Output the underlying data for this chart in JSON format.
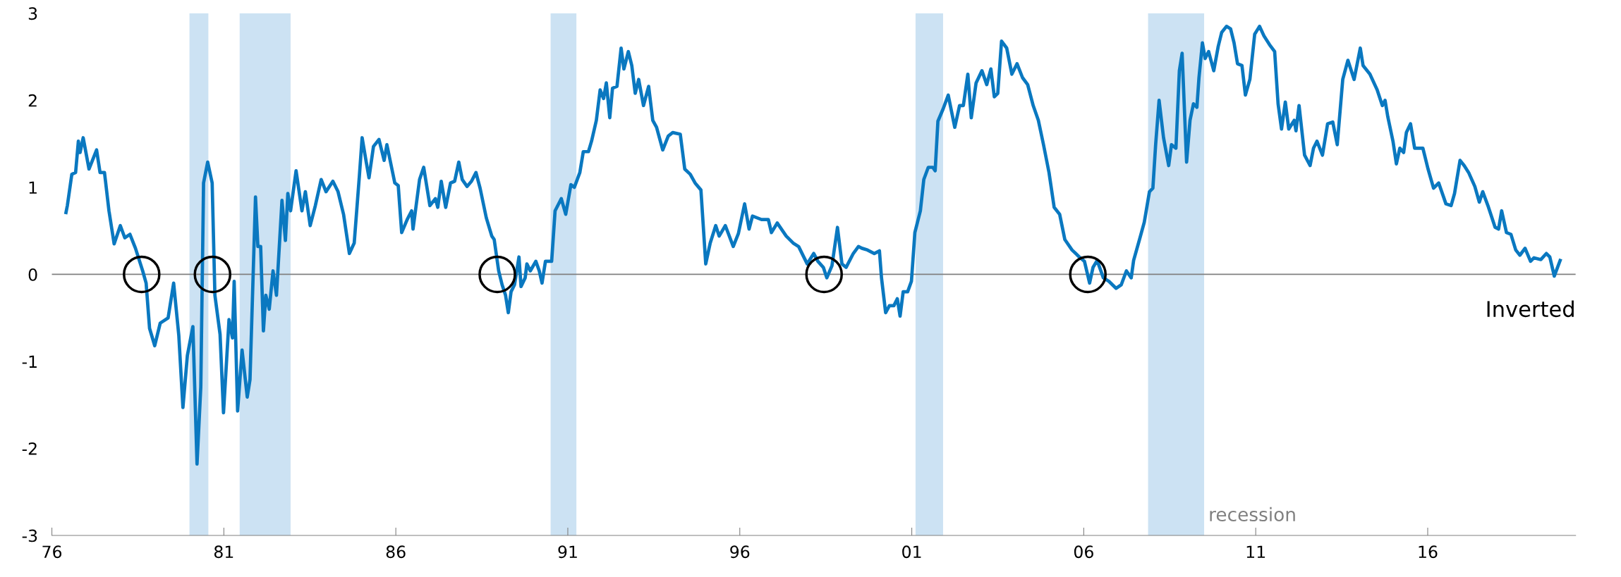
{
  "chart_data": {
    "type": "line",
    "xlim": [
      1976,
      2020.3
    ],
    "ylim": [
      -3,
      3
    ],
    "xticks": [
      {
        "value": 1976,
        "label": "76"
      },
      {
        "value": 1981,
        "label": "81"
      },
      {
        "value": 1986,
        "label": "86"
      },
      {
        "value": 1991,
        "label": "91"
      },
      {
        "value": 1996,
        "label": "96"
      },
      {
        "value": 2001,
        "label": "01"
      },
      {
        "value": 2006,
        "label": "06"
      },
      {
        "value": 2011,
        "label": "11"
      },
      {
        "value": 2016,
        "label": "16"
      }
    ],
    "yticks": [
      -3,
      -2,
      -1,
      0,
      1,
      2,
      3
    ],
    "grid": false,
    "legend": false,
    "ref_lines": [
      {
        "axis": "y",
        "value": 0,
        "color": "#808080"
      }
    ],
    "bands": [
      {
        "axis": "x",
        "from": 1980.0,
        "to": 1980.55,
        "color": "#cce2f3"
      },
      {
        "axis": "x",
        "from": 1981.46,
        "to": 1982.94,
        "color": "#cce2f3"
      },
      {
        "axis": "x",
        "from": 1990.5,
        "to": 1991.25,
        "color": "#cce2f3"
      },
      {
        "axis": "x",
        "from": 2001.11,
        "to": 2001.91,
        "color": "#cce2f3"
      },
      {
        "axis": "x",
        "from": 2007.87,
        "to": 2009.5,
        "color": "#cce2f3"
      }
    ],
    "annotations": [
      "recession",
      "Inverted"
    ],
    "series": [
      {
        "color": "#0a78c0",
        "marker": "none",
        "line_style": "solid",
        "x": [
          1976.41,
          1976.45,
          1976.58,
          1976.69,
          1976.77,
          1976.82,
          1976.91,
          1977.08,
          1977.3,
          1977.4,
          1977.53,
          1977.66,
          1977.81,
          1977.99,
          1978.12,
          1978.27,
          1978.43,
          1978.64,
          1978.74,
          1978.84,
          1978.99,
          1979.15,
          1979.38,
          1979.54,
          1979.69,
          1979.81,
          1979.94,
          1980.1,
          1980.22,
          1980.33,
          1980.41,
          1980.53,
          1980.66,
          1980.74,
          1980.89,
          1980.99,
          1981.15,
          1981.25,
          1981.3,
          1981.4,
          1981.53,
          1981.68,
          1981.76,
          1981.92,
          1981.99,
          1982.07,
          1982.15,
          1982.22,
          1982.32,
          1982.43,
          1982.53,
          1982.69,
          1982.79,
          1982.86,
          1982.94,
          1983.1,
          1983.27,
          1983.37,
          1983.51,
          1983.66,
          1983.83,
          1983.97,
          1984.17,
          1984.32,
          1984.48,
          1984.65,
          1984.79,
          1984.94,
          1985.02,
          1985.14,
          1985.22,
          1985.35,
          1985.51,
          1985.66,
          1985.74,
          1985.97,
          1986.07,
          1986.17,
          1986.33,
          1986.46,
          1986.5,
          1986.69,
          1986.81,
          1986.99,
          1987.15,
          1987.22,
          1987.32,
          1987.45,
          1987.59,
          1987.71,
          1987.83,
          1987.93,
          1988.07,
          1988.2,
          1988.33,
          1988.45,
          1988.63,
          1988.79,
          1988.86,
          1988.99,
          1989.09,
          1989.19,
          1989.27,
          1989.35,
          1989.45,
          1989.58,
          1989.64,
          1989.76,
          1989.81,
          1989.91,
          1990.07,
          1990.17,
          1990.25,
          1990.35,
          1990.53,
          1990.63,
          1990.81,
          1990.94,
          1991.09,
          1991.19,
          1991.35,
          1991.45,
          1991.6,
          1991.69,
          1991.83,
          1991.94,
          1992.04,
          1992.12,
          1992.22,
          1992.3,
          1992.43,
          1992.55,
          1992.63,
          1992.76,
          1992.86,
          1992.96,
          1993.06,
          1993.2,
          1993.35,
          1993.47,
          1993.58,
          1993.76,
          1993.92,
          1994.05,
          1994.27,
          1994.4,
          1994.56,
          1994.7,
          1994.87,
          1995.01,
          1995.14,
          1995.3,
          1995.4,
          1995.58,
          1995.81,
          1995.96,
          1996.14,
          1996.27,
          1996.37,
          1996.63,
          1996.83,
          1996.92,
          1997.09,
          1997.35,
          1997.55,
          1997.71,
          1997.96,
          1998.15,
          1998.27,
          1998.43,
          1998.53,
          1998.68,
          1998.84,
          1998.97,
          1999.09,
          1999.3,
          1999.45,
          1999.55,
          1999.71,
          1999.91,
          2000.06,
          2000.12,
          2000.24,
          2000.35,
          2000.48,
          2000.58,
          2000.66,
          2000.75,
          2000.88,
          2000.99,
          2001.09,
          2001.25,
          2001.35,
          2001.48,
          2001.61,
          2001.68,
          2001.76,
          2001.91,
          2002.06,
          2002.25,
          2002.39,
          2002.5,
          2002.63,
          2002.73,
          2002.87,
          2003.04,
          2003.18,
          2003.3,
          2003.4,
          2003.5,
          2003.61,
          2003.76,
          2003.91,
          2004.06,
          2004.22,
          2004.37,
          2004.53,
          2004.68,
          2004.83,
          2004.99,
          2005.14,
          2005.3,
          2005.45,
          2005.66,
          2005.87,
          2006.02,
          2006.17,
          2006.27,
          2006.39,
          2006.57,
          2006.73,
          2006.94,
          2007.09,
          2007.24,
          2007.38,
          2007.45,
          2007.62,
          2007.76,
          2007.91,
          2008.01,
          2008.09,
          2008.19,
          2008.32,
          2008.47,
          2008.55,
          2008.68,
          2008.78,
          2008.86,
          2008.99,
          2009.09,
          2009.19,
          2009.29,
          2009.35,
          2009.45,
          2009.53,
          2009.63,
          2009.78,
          2009.91,
          2010.01,
          2010.15,
          2010.27,
          2010.37,
          2010.47,
          2010.6,
          2010.7,
          2010.83,
          2010.97,
          2011.11,
          2011.24,
          2011.4,
          2011.55,
          2011.65,
          2011.75,
          2011.86,
          2011.96,
          2012.12,
          2012.17,
          2012.26,
          2012.42,
          2012.58,
          2012.68,
          2012.78,
          2012.94,
          2013.09,
          2013.24,
          2013.37,
          2013.53,
          2013.68,
          2013.86,
          2014.04,
          2014.12,
          2014.32,
          2014.53,
          2014.68,
          2014.76,
          2014.84,
          2014.99,
          2015.09,
          2015.19,
          2015.3,
          2015.38,
          2015.5,
          2015.62,
          2015.86,
          2016.01,
          2016.17,
          2016.32,
          2016.53,
          2016.68,
          2016.78,
          2016.94,
          2017.06,
          2017.19,
          2017.37,
          2017.5,
          2017.6,
          2017.75,
          2017.96,
          2018.06,
          2018.15,
          2018.29,
          2018.42,
          2018.56,
          2018.68,
          2018.83,
          2018.99,
          2019.09,
          2019.29,
          2019.45,
          2019.55,
          2019.68,
          2019.85
        ],
        "values": [
          0.71,
          0.79,
          1.15,
          1.17,
          1.53,
          1.4,
          1.57,
          1.21,
          1.43,
          1.17,
          1.17,
          0.73,
          0.35,
          0.56,
          0.42,
          0.46,
          0.3,
          0.04,
          -0.1,
          -0.62,
          -0.82,
          -0.56,
          -0.5,
          -0.1,
          -0.7,
          -1.53,
          -0.93,
          -0.6,
          -2.18,
          -1.29,
          1.05,
          1.29,
          1.05,
          -0.24,
          -0.69,
          -1.59,
          -0.52,
          -0.73,
          -0.08,
          -1.57,
          -0.87,
          -1.41,
          -1.21,
          0.89,
          0.32,
          0.32,
          -0.65,
          -0.24,
          -0.4,
          0.04,
          -0.24,
          0.85,
          0.39,
          0.93,
          0.73,
          1.19,
          0.73,
          0.95,
          0.56,
          0.79,
          1.09,
          0.95,
          1.07,
          0.95,
          0.69,
          0.24,
          0.36,
          1.13,
          1.57,
          1.29,
          1.11,
          1.47,
          1.55,
          1.31,
          1.49,
          1.05,
          1.02,
          0.48,
          0.63,
          0.73,
          0.52,
          1.09,
          1.23,
          0.79,
          0.87,
          0.77,
          1.07,
          0.77,
          1.05,
          1.07,
          1.29,
          1.09,
          1.01,
          1.07,
          1.17,
          0.99,
          0.65,
          0.44,
          0.4,
          0.04,
          -0.12,
          -0.24,
          -0.44,
          -0.2,
          -0.12,
          0.2,
          -0.14,
          -0.04,
          0.12,
          0.04,
          0.15,
          0.04,
          -0.1,
          0.15,
          0.15,
          0.73,
          0.87,
          0.69,
          1.03,
          1.0,
          1.17,
          1.41,
          1.41,
          1.53,
          1.77,
          2.12,
          2.02,
          2.2,
          1.8,
          2.14,
          2.16,
          2.6,
          2.36,
          2.56,
          2.4,
          2.08,
          2.24,
          1.94,
          2.16,
          1.77,
          1.69,
          1.43,
          1.59,
          1.63,
          1.61,
          1.21,
          1.15,
          1.05,
          0.97,
          0.12,
          0.36,
          0.56,
          0.44,
          0.56,
          0.32,
          0.47,
          0.81,
          0.52,
          0.67,
          0.63,
          0.63,
          0.48,
          0.59,
          0.44,
          0.36,
          0.32,
          0.12,
          0.24,
          0.15,
          0.08,
          -0.04,
          0.1,
          0.54,
          0.12,
          0.08,
          0.24,
          0.32,
          0.3,
          0.28,
          0.24,
          0.27,
          -0.04,
          -0.44,
          -0.36,
          -0.36,
          -0.28,
          -0.48,
          -0.2,
          -0.2,
          -0.08,
          0.48,
          0.73,
          1.09,
          1.23,
          1.23,
          1.19,
          1.76,
          1.9,
          2.06,
          1.69,
          1.94,
          1.94,
          2.3,
          1.8,
          2.2,
          2.34,
          2.18,
          2.36,
          2.04,
          2.08,
          2.68,
          2.6,
          2.3,
          2.42,
          2.26,
          2.18,
          1.94,
          1.77,
          1.49,
          1.17,
          0.77,
          0.69,
          0.4,
          0.28,
          0.2,
          0.15,
          -0.1,
          0.08,
          0.16,
          -0.04,
          -0.08,
          -0.16,
          -0.12,
          0.04,
          -0.04,
          0.16,
          0.4,
          0.6,
          0.95,
          0.99,
          1.49,
          2.0,
          1.57,
          1.25,
          1.49,
          1.45,
          2.34,
          2.54,
          1.29,
          1.77,
          1.96,
          1.92,
          2.26,
          2.66,
          2.48,
          2.56,
          2.34,
          2.62,
          2.78,
          2.85,
          2.82,
          2.66,
          2.42,
          2.4,
          2.06,
          2.24,
          2.76,
          2.85,
          2.74,
          2.64,
          2.56,
          1.96,
          1.67,
          1.98,
          1.67,
          1.77,
          1.65,
          1.94,
          1.37,
          1.25,
          1.45,
          1.53,
          1.37,
          1.73,
          1.75,
          1.49,
          2.24,
          2.46,
          2.24,
          2.6,
          2.4,
          2.3,
          2.12,
          1.94,
          2.0,
          1.81,
          1.53,
          1.27,
          1.45,
          1.4,
          1.63,
          1.73,
          1.45,
          1.45,
          1.21,
          0.99,
          1.05,
          0.81,
          0.79,
          0.93,
          1.31,
          1.25,
          1.17,
          1.01,
          0.83,
          0.95,
          0.79,
          0.54,
          0.52,
          0.73,
          0.48,
          0.46,
          0.28,
          0.22,
          0.3,
          0.15,
          0.19,
          0.17,
          0.24,
          0.2,
          -0.02,
          0.16
        ]
      },
      {
        "type": "scatter",
        "color": "#000000",
        "marker": "circle",
        "x": [
          1978.61,
          1980.67,
          1988.95,
          1998.45,
          2006.12
        ],
        "values": [
          0,
          0,
          0,
          0,
          0
        ]
      }
    ]
  }
}
